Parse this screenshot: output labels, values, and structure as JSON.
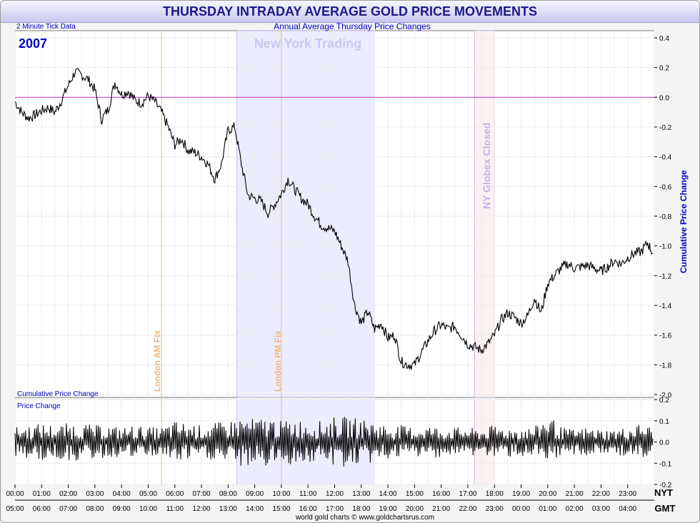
{
  "title": "THURSDAY INTRADAY AVERAGE GOLD PRICE MOVEMENTS",
  "subtitle": "Annual Average Thursday Price Changes",
  "tick_note": "2 Minute Tick Data",
  "year": "2007",
  "top_panel_label": "Cumulative Price Change",
  "bottom_panel_label": "Price Change",
  "right_axis_label": "Cumulative Price Change",
  "zone_labels": {
    "ny_trading": "New York Trading",
    "london_am": "London AM Fix",
    "london_pm": "London PM Fix",
    "globex": "NY Globex Closed"
  },
  "axis_tags": {
    "nyt": "NYT",
    "gmt": "GMT"
  },
  "credit": "world gold charts © www.goldchartsrus.com",
  "colors": {
    "title": "#1a1a8a",
    "line": "#000000",
    "zero_line": "#cc33cc",
    "fix_line": "#f0b880",
    "ny_band": "#ececff",
    "globex_band": "#fdf0f0",
    "axis_label": "#0000cc"
  },
  "chart_data": [
    {
      "type": "line",
      "name": "cumulative",
      "xlabel": "NYT / GMT",
      "ylabel": "Cumulative Price Change",
      "xlim": [
        0,
        24
      ],
      "ylim": [
        -2.0,
        0.4
      ],
      "yticks": [
        "0.4",
        "0.2",
        "0.0",
        "-0.2",
        "-0.4",
        "-0.6",
        "-0.8",
        "-1.0",
        "-1.2",
        "-1.4",
        "-1.6",
        "-1.8",
        "-2.0"
      ],
      "x_nyt_ticks": [
        "00:00",
        "01:00",
        "02:00",
        "03:00",
        "04:00",
        "05:00",
        "06:00",
        "07:00",
        "08:00",
        "09:00",
        "10:00",
        "11:00",
        "12:00",
        "13:00",
        "14:00",
        "15:00",
        "16:00",
        "17:00",
        "18:00",
        "19:00",
        "20:00",
        "21:00",
        "22:00",
        "23:00"
      ],
      "x_gmt_ticks": [
        "05:00",
        "06:00",
        "07:00",
        "08:00",
        "09:00",
        "10:00",
        "11:00",
        "12:00",
        "13:00",
        "14:00",
        "15:00",
        "16:00",
        "17:00",
        "18:00",
        "19:00",
        "20:00",
        "21:00",
        "22:00",
        "23:00",
        "00:00",
        "01:00",
        "02:00",
        "03:00",
        "04:00"
      ],
      "bands": [
        {
          "label_key": "ny_trading",
          "from": 8.33,
          "to": 13.5
        },
        {
          "label_key": "globex",
          "from": 17.25,
          "to": 18.0
        }
      ],
      "markers": [
        {
          "label_key": "london_am",
          "x": 5.5
        },
        {
          "label_key": "london_pm",
          "x": 10.0
        }
      ],
      "x": [
        0,
        0.25,
        0.5,
        0.75,
        1.0,
        1.25,
        1.5,
        1.75,
        2.0,
        2.25,
        2.5,
        2.75,
        3.0,
        3.25,
        3.5,
        3.75,
        4.0,
        4.25,
        4.5,
        4.75,
        5.0,
        5.25,
        5.5,
        5.75,
        6.0,
        6.25,
        6.5,
        6.75,
        7.0,
        7.25,
        7.5,
        7.75,
        8.0,
        8.25,
        8.5,
        8.75,
        9.0,
        9.25,
        9.5,
        9.75,
        10.0,
        10.25,
        10.5,
        10.75,
        11.0,
        11.25,
        11.5,
        11.75,
        12.0,
        12.25,
        12.5,
        12.75,
        13.0,
        13.25,
        13.5,
        13.75,
        14.0,
        14.25,
        14.5,
        14.75,
        15.0,
        15.25,
        15.5,
        15.75,
        16.0,
        16.25,
        16.5,
        16.75,
        17.0,
        17.25,
        17.5,
        17.75,
        18.0,
        18.25,
        18.5,
        18.75,
        19.0,
        19.25,
        19.5,
        19.75,
        20.0,
        20.25,
        20.5,
        20.75,
        21.0,
        21.25,
        21.5,
        21.75,
        22.0,
        22.25,
        22.5,
        22.75,
        23.0,
        23.25,
        23.5,
        23.75,
        23.95
      ],
      "y": [
        -0.03,
        -0.1,
        -0.14,
        -0.12,
        -0.09,
        -0.07,
        -0.1,
        -0.02,
        0.08,
        0.17,
        0.15,
        0.12,
        0.05,
        -0.15,
        -0.08,
        0.1,
        0.02,
        0.04,
        -0.02,
        -0.04,
        0.01,
        -0.03,
        -0.1,
        -0.2,
        -0.32,
        -0.28,
        -0.36,
        -0.37,
        -0.4,
        -0.45,
        -0.55,
        -0.45,
        -0.22,
        -0.2,
        -0.45,
        -0.66,
        -0.68,
        -0.7,
        -0.78,
        -0.72,
        -0.65,
        -0.55,
        -0.62,
        -0.68,
        -0.72,
        -0.8,
        -0.86,
        -0.88,
        -0.9,
        -1.0,
        -1.1,
        -1.4,
        -1.52,
        -1.44,
        -1.56,
        -1.52,
        -1.62,
        -1.6,
        -1.78,
        -1.8,
        -1.8,
        -1.72,
        -1.64,
        -1.57,
        -1.53,
        -1.56,
        -1.54,
        -1.6,
        -1.66,
        -1.68,
        -1.7,
        -1.66,
        -1.6,
        -1.5,
        -1.45,
        -1.48,
        -1.52,
        -1.47,
        -1.35,
        -1.45,
        -1.25,
        -1.2,
        -1.15,
        -1.12,
        -1.15,
        -1.14,
        -1.13,
        -1.15,
        -1.17,
        -1.14,
        -1.1,
        -1.12,
        -1.08,
        -1.05,
        -1.04,
        -0.98,
        -1.05
      ]
    },
    {
      "type": "line",
      "name": "price_change",
      "ylabel": "Price Change",
      "xlim": [
        0,
        24
      ],
      "ylim": [
        -0.2,
        0.2
      ],
      "yticks": [
        "0.2",
        "0.1",
        "0.0",
        "-0.1",
        "-0.2"
      ],
      "x": [
        0,
        0.5,
        1.0,
        1.5,
        2.0,
        2.5,
        3.0,
        3.5,
        4.0,
        4.5,
        5.0,
        5.5,
        6.0,
        6.5,
        7.0,
        7.5,
        8.0,
        8.5,
        9.0,
        9.5,
        10.0,
        10.5,
        11.0,
        11.5,
        12.0,
        12.5,
        13.0,
        13.5,
        14.0,
        14.5,
        15.0,
        15.5,
        16.0,
        16.5,
        17.0,
        17.5,
        18.0,
        18.5,
        19.0,
        19.5,
        20.0,
        20.5,
        21.0,
        21.5,
        22.0,
        22.5,
        23.0,
        23.5,
        23.95
      ],
      "y_envelope": [
        0.07,
        0.08,
        0.09,
        0.08,
        0.09,
        0.09,
        0.08,
        0.08,
        0.07,
        0.08,
        0.07,
        0.07,
        0.1,
        0.09,
        0.08,
        0.09,
        0.1,
        0.12,
        0.11,
        0.12,
        0.1,
        0.11,
        0.1,
        0.1,
        0.12,
        0.12,
        0.11,
        0.1,
        0.08,
        0.08,
        0.07,
        0.08,
        0.07,
        0.07,
        0.07,
        0.06,
        0.08,
        0.07,
        0.07,
        0.07,
        0.14,
        0.07,
        0.06,
        0.07,
        0.06,
        0.06,
        0.07,
        0.09,
        0.07
      ]
    }
  ]
}
